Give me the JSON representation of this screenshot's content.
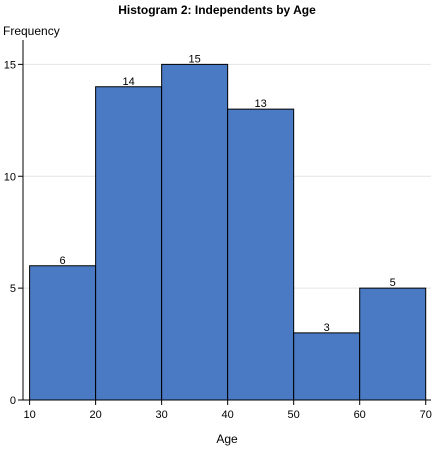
{
  "chart_data": {
    "type": "bar",
    "title": "Histogram 2: Independents by Age",
    "xlabel": "Age",
    "ylabel": "Frequency",
    "bins": [
      {
        "start": 10,
        "end": 20,
        "value": 6
      },
      {
        "start": 20,
        "end": 30,
        "value": 14
      },
      {
        "start": 30,
        "end": 40,
        "value": 15
      },
      {
        "start": 40,
        "end": 50,
        "value": 13
      },
      {
        "start": 50,
        "end": 60,
        "value": 3
      },
      {
        "start": 60,
        "end": 70,
        "value": 5
      }
    ],
    "xlim": [
      9,
      70.8
    ],
    "ylim": [
      0,
      16
    ],
    "xticks": [
      10,
      20,
      30,
      40,
      50,
      60,
      70
    ],
    "yticks": [
      0,
      5,
      10,
      15
    ],
    "grid": true,
    "bar_color": "#4a7ac3",
    "bar_edge_color": "#000000",
    "data_labels": true
  }
}
